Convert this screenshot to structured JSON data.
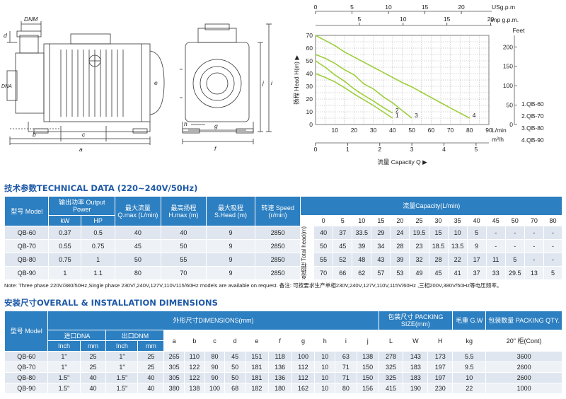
{
  "drawing": {
    "left_labels": [
      "DNM",
      "d",
      "b",
      "c",
      "a",
      "e",
      "DNA"
    ],
    "right_labels": [
      "h",
      "g",
      "f",
      "j",
      "i"
    ]
  },
  "performance_chart": {
    "top_axis_usgpm": {
      "label": "USg.p.m",
      "ticks": [
        "0",
        "5",
        "10",
        "15",
        "20"
      ]
    },
    "top_axis_imp": {
      "label": "Imp g.p.m.",
      "ticks": [
        "5",
        "10",
        "15",
        "20"
      ]
    },
    "left_axis": {
      "label": "扬程 Head H(m) ▶",
      "ticks": [
        "0",
        "10",
        "20",
        "30",
        "40",
        "50",
        "60",
        "70"
      ]
    },
    "right_axis": {
      "label": "Feet",
      "ticks": [
        "0",
        "50",
        "100",
        "150",
        "200"
      ]
    },
    "bottom_axis_lmin": {
      "label": "L/min",
      "ticks": [
        "10",
        "20",
        "30",
        "40",
        "50",
        "60",
        "70",
        "80",
        "90"
      ]
    },
    "bottom_axis_m3h": {
      "label": "m³/h",
      "ticks": [
        "0",
        "1",
        "2",
        "3",
        "4",
        "5"
      ]
    },
    "xlabel": "流量 Capacity Q ▶",
    "legend": [
      "1.QB-60",
      "2.QB-70",
      "3.QB-80",
      "4.QB-90"
    ],
    "curve_labels": [
      "1",
      "2",
      "3",
      "4"
    ]
  },
  "chart_data": {
    "type": "line",
    "xlabel": "流量 Capacity Q ▶",
    "ylabel": "扬程 Head H(m) ▶",
    "xlim": [
      0,
      90
    ],
    "ylim": [
      0,
      70
    ],
    "series": [
      {
        "name": "QB-60",
        "x": [
          0,
          5,
          10,
          15,
          20,
          25,
          30,
          35,
          40
        ],
        "y": [
          40,
          37,
          33.5,
          29,
          24,
          19.5,
          15,
          10,
          5
        ]
      },
      {
        "name": "QB-70",
        "x": [
          0,
          5,
          10,
          15,
          20,
          25,
          30,
          35,
          40
        ],
        "y": [
          50,
          45,
          39,
          34,
          28,
          23,
          18.5,
          13.5,
          9
        ]
      },
      {
        "name": "QB-80",
        "x": [
          0,
          5,
          10,
          15,
          20,
          25,
          30,
          35,
          40,
          45,
          50
        ],
        "y": [
          55,
          52,
          48,
          43,
          39,
          32,
          28,
          22,
          17,
          11,
          5
        ]
      },
      {
        "name": "QB-90",
        "x": [
          0,
          5,
          10,
          15,
          20,
          25,
          30,
          35,
          40,
          45,
          50,
          70,
          80
        ],
        "y": [
          70,
          66,
          62,
          57,
          53,
          49,
          45,
          41,
          37,
          33,
          29.5,
          13,
          5
        ]
      }
    ]
  },
  "tech_title": "技术参数TECHNICAL DATA (220~240V/50Hz)",
  "tech_table": {
    "h_model": "型号 Model",
    "h_power": "输出功率 Output Power",
    "h_kw": "kW",
    "h_hp": "HP",
    "h_qmax": "最大流量 Q.max (L/min)",
    "h_hmax": "最高扬程 H.max (m)",
    "h_shead": "最大吸程 S.Head (m)",
    "h_speed": "转速 Speed (r/min)",
    "h_capacity": "流量Capacity(L/min)",
    "h_total_head": "总扬程 Total head(m)",
    "flows": [
      "0",
      "5",
      "10",
      "15",
      "20",
      "25",
      "30",
      "35",
      "40",
      "45",
      "50",
      "70",
      "80"
    ],
    "rows": [
      {
        "model": "QB-60",
        "kw": "0.37",
        "hp": "0.5",
        "qmax": "40",
        "hmax": "40",
        "shead": "9",
        "speed": "2850",
        "heads": [
          "40",
          "37",
          "33.5",
          "29",
          "24",
          "19.5",
          "15",
          "10",
          "5",
          "-",
          "-",
          "-",
          "-"
        ]
      },
      {
        "model": "QB-70",
        "kw": "0.55",
        "hp": "0.75",
        "qmax": "45",
        "hmax": "50",
        "shead": "9",
        "speed": "2850",
        "heads": [
          "50",
          "45",
          "39",
          "34",
          "28",
          "23",
          "18.5",
          "13.5",
          "9",
          "-",
          "-",
          "-",
          "-"
        ]
      },
      {
        "model": "QB-80",
        "kw": "0.75",
        "hp": "1",
        "qmax": "50",
        "hmax": "55",
        "shead": "9",
        "speed": "2850",
        "heads": [
          "55",
          "52",
          "48",
          "43",
          "39",
          "32",
          "28",
          "22",
          "17",
          "11",
          "5",
          "-",
          "-"
        ]
      },
      {
        "model": "QB-90",
        "kw": "1",
        "hp": "1.1",
        "qmax": "80",
        "hmax": "70",
        "shead": "9",
        "speed": "2850",
        "heads": [
          "70",
          "66",
          "62",
          "57",
          "53",
          "49",
          "45",
          "41",
          "37",
          "33",
          "29.5",
          "13",
          "5"
        ]
      }
    ]
  },
  "note": "Note: Three phase 220V/380/50Hz,Single phase 230V/,240V,127V,110V115/60Hz models are available on request. 备注: 可按要求生产单相230V,240V,127V,110V,115V/60Hz ,三相200V,380V/50Hz等电压频率。",
  "dim_title": "安装尺寸OVERALL & INSTALLATION DIMENSIONS",
  "dim_table": {
    "h_model": "型号 Model",
    "h_dna": "进口DNA",
    "h_dnm": "出口DNM",
    "h_inch": "Inch",
    "h_mm": "mm",
    "h_dimensions": "外形尺寸DIMENSIONS(mm)",
    "dim_letters": [
      "a",
      "b",
      "c",
      "d",
      "e",
      "f",
      "g",
      "h",
      "i",
      "j"
    ],
    "h_packing": "包装尺寸 PACKING SIZE(mm)",
    "pack_letters": [
      "L",
      "W",
      "H"
    ],
    "h_gw": "毛重 G.W",
    "h_kg": "kg",
    "h_qty": "包装数量 PACKING QTY.",
    "h_cont": "20\" 柜(Cont)",
    "rows": [
      {
        "model": "QB-60",
        "dna_in": "1\"",
        "dna_mm": "25",
        "dnm_in": "1\"",
        "dnm_mm": "25",
        "dims": [
          "265",
          "110",
          "80",
          "45",
          "151",
          "118",
          "100",
          "10",
          "63",
          "138"
        ],
        "pack": [
          "278",
          "143",
          "173"
        ],
        "gw": "5.5",
        "qty": "3600"
      },
      {
        "model": "QB-70",
        "dna_in": "1\"",
        "dna_mm": "25",
        "dnm_in": "1\"",
        "dnm_mm": "25",
        "dims": [
          "305",
          "122",
          "90",
          "50",
          "181",
          "136",
          "112",
          "10",
          "71",
          "150"
        ],
        "pack": [
          "325",
          "183",
          "197"
        ],
        "gw": "9.5",
        "qty": "2600"
      },
      {
        "model": "QB-80",
        "dna_in": "1.5\"",
        "dna_mm": "40",
        "dnm_in": "1.5\"",
        "dnm_mm": "40",
        "dims": [
          "305",
          "122",
          "90",
          "50",
          "181",
          "136",
          "112",
          "10",
          "71",
          "150"
        ],
        "pack": [
          "325",
          "183",
          "197"
        ],
        "gw": "10",
        "qty": "2600"
      },
      {
        "model": "QB-90",
        "dna_in": "1.5\"",
        "dna_mm": "40",
        "dnm_in": "1.5\"",
        "dnm_mm": "40",
        "dims": [
          "380",
          "138",
          "100",
          "68",
          "182",
          "180",
          "162",
          "10",
          "80",
          "156"
        ],
        "pack": [
          "415",
          "190",
          "230"
        ],
        "gw": "22",
        "qty": "1000"
      }
    ]
  }
}
